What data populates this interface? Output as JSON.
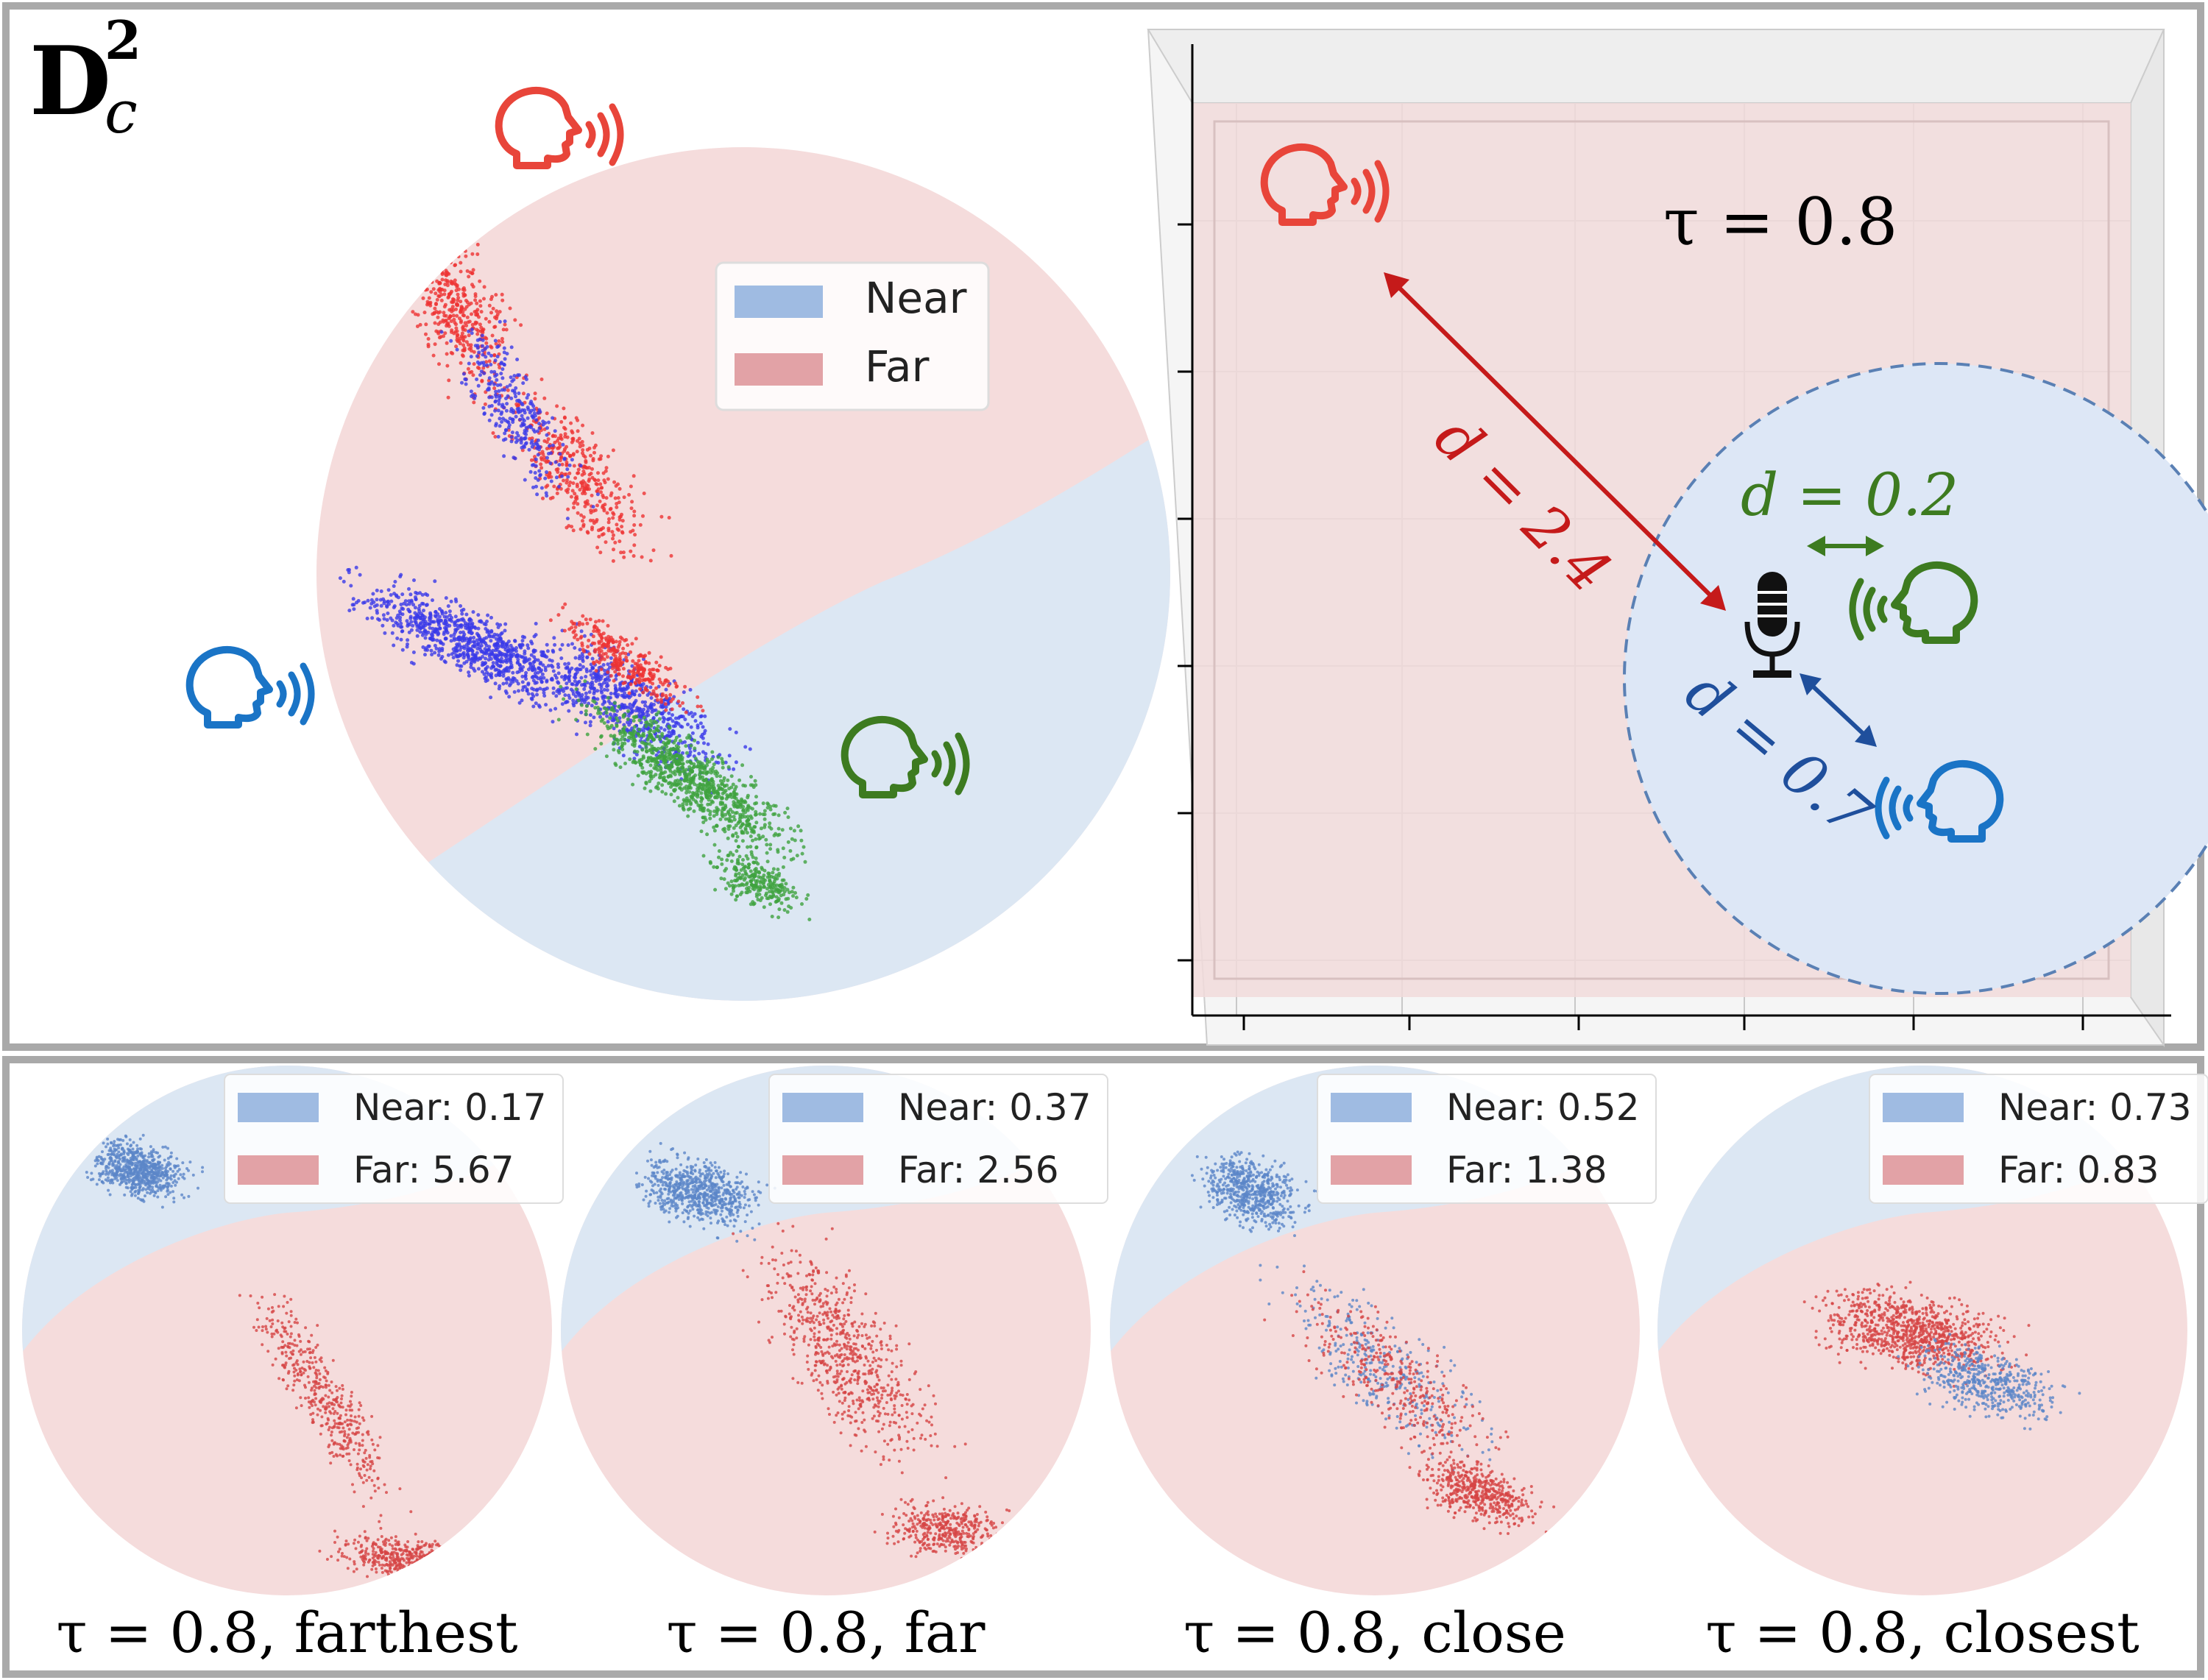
{
  "top_panel": {
    "title_main": "D",
    "title_sup": "2",
    "title_sub": "c",
    "legend": {
      "near": "Near",
      "far": "Far"
    },
    "tau_label": "τ = 0.8",
    "distances": {
      "far": "d = 2.4",
      "green": "d = 0.2",
      "blue": "d = 0.7"
    }
  },
  "bottom_panels": [
    {
      "near_label": "Near: 0.17",
      "far_label": "Far: 5.67",
      "caption": "τ = 0.8, farthest"
    },
    {
      "near_label": "Near: 0.37",
      "far_label": "Far: 2.56",
      "caption": "τ = 0.8, far"
    },
    {
      "near_label": "Near: 0.52",
      "far_label": "Far: 1.38",
      "caption": "τ = 0.8, close"
    },
    {
      "near_label": "Near: 0.73",
      "far_label": "Far: 0.83",
      "caption": "τ = 0.8, closest"
    }
  ],
  "colors": {
    "near_fill": "#dce7f3",
    "far_fill": "#f5dcdc",
    "near_legend": "#9fbbe2",
    "far_legend": "#e2a2a6",
    "red_speaker": "#e8453a",
    "blue_speaker": "#1a74c6",
    "green_speaker": "#3d7b20",
    "arrow_red": "#c51a1a",
    "arrow_blue": "#1f4f9c",
    "arrow_green": "#3d7b20",
    "border": "#a9a9a9"
  },
  "icons": [
    "speaker-head-icon",
    "microphone-icon"
  ]
}
